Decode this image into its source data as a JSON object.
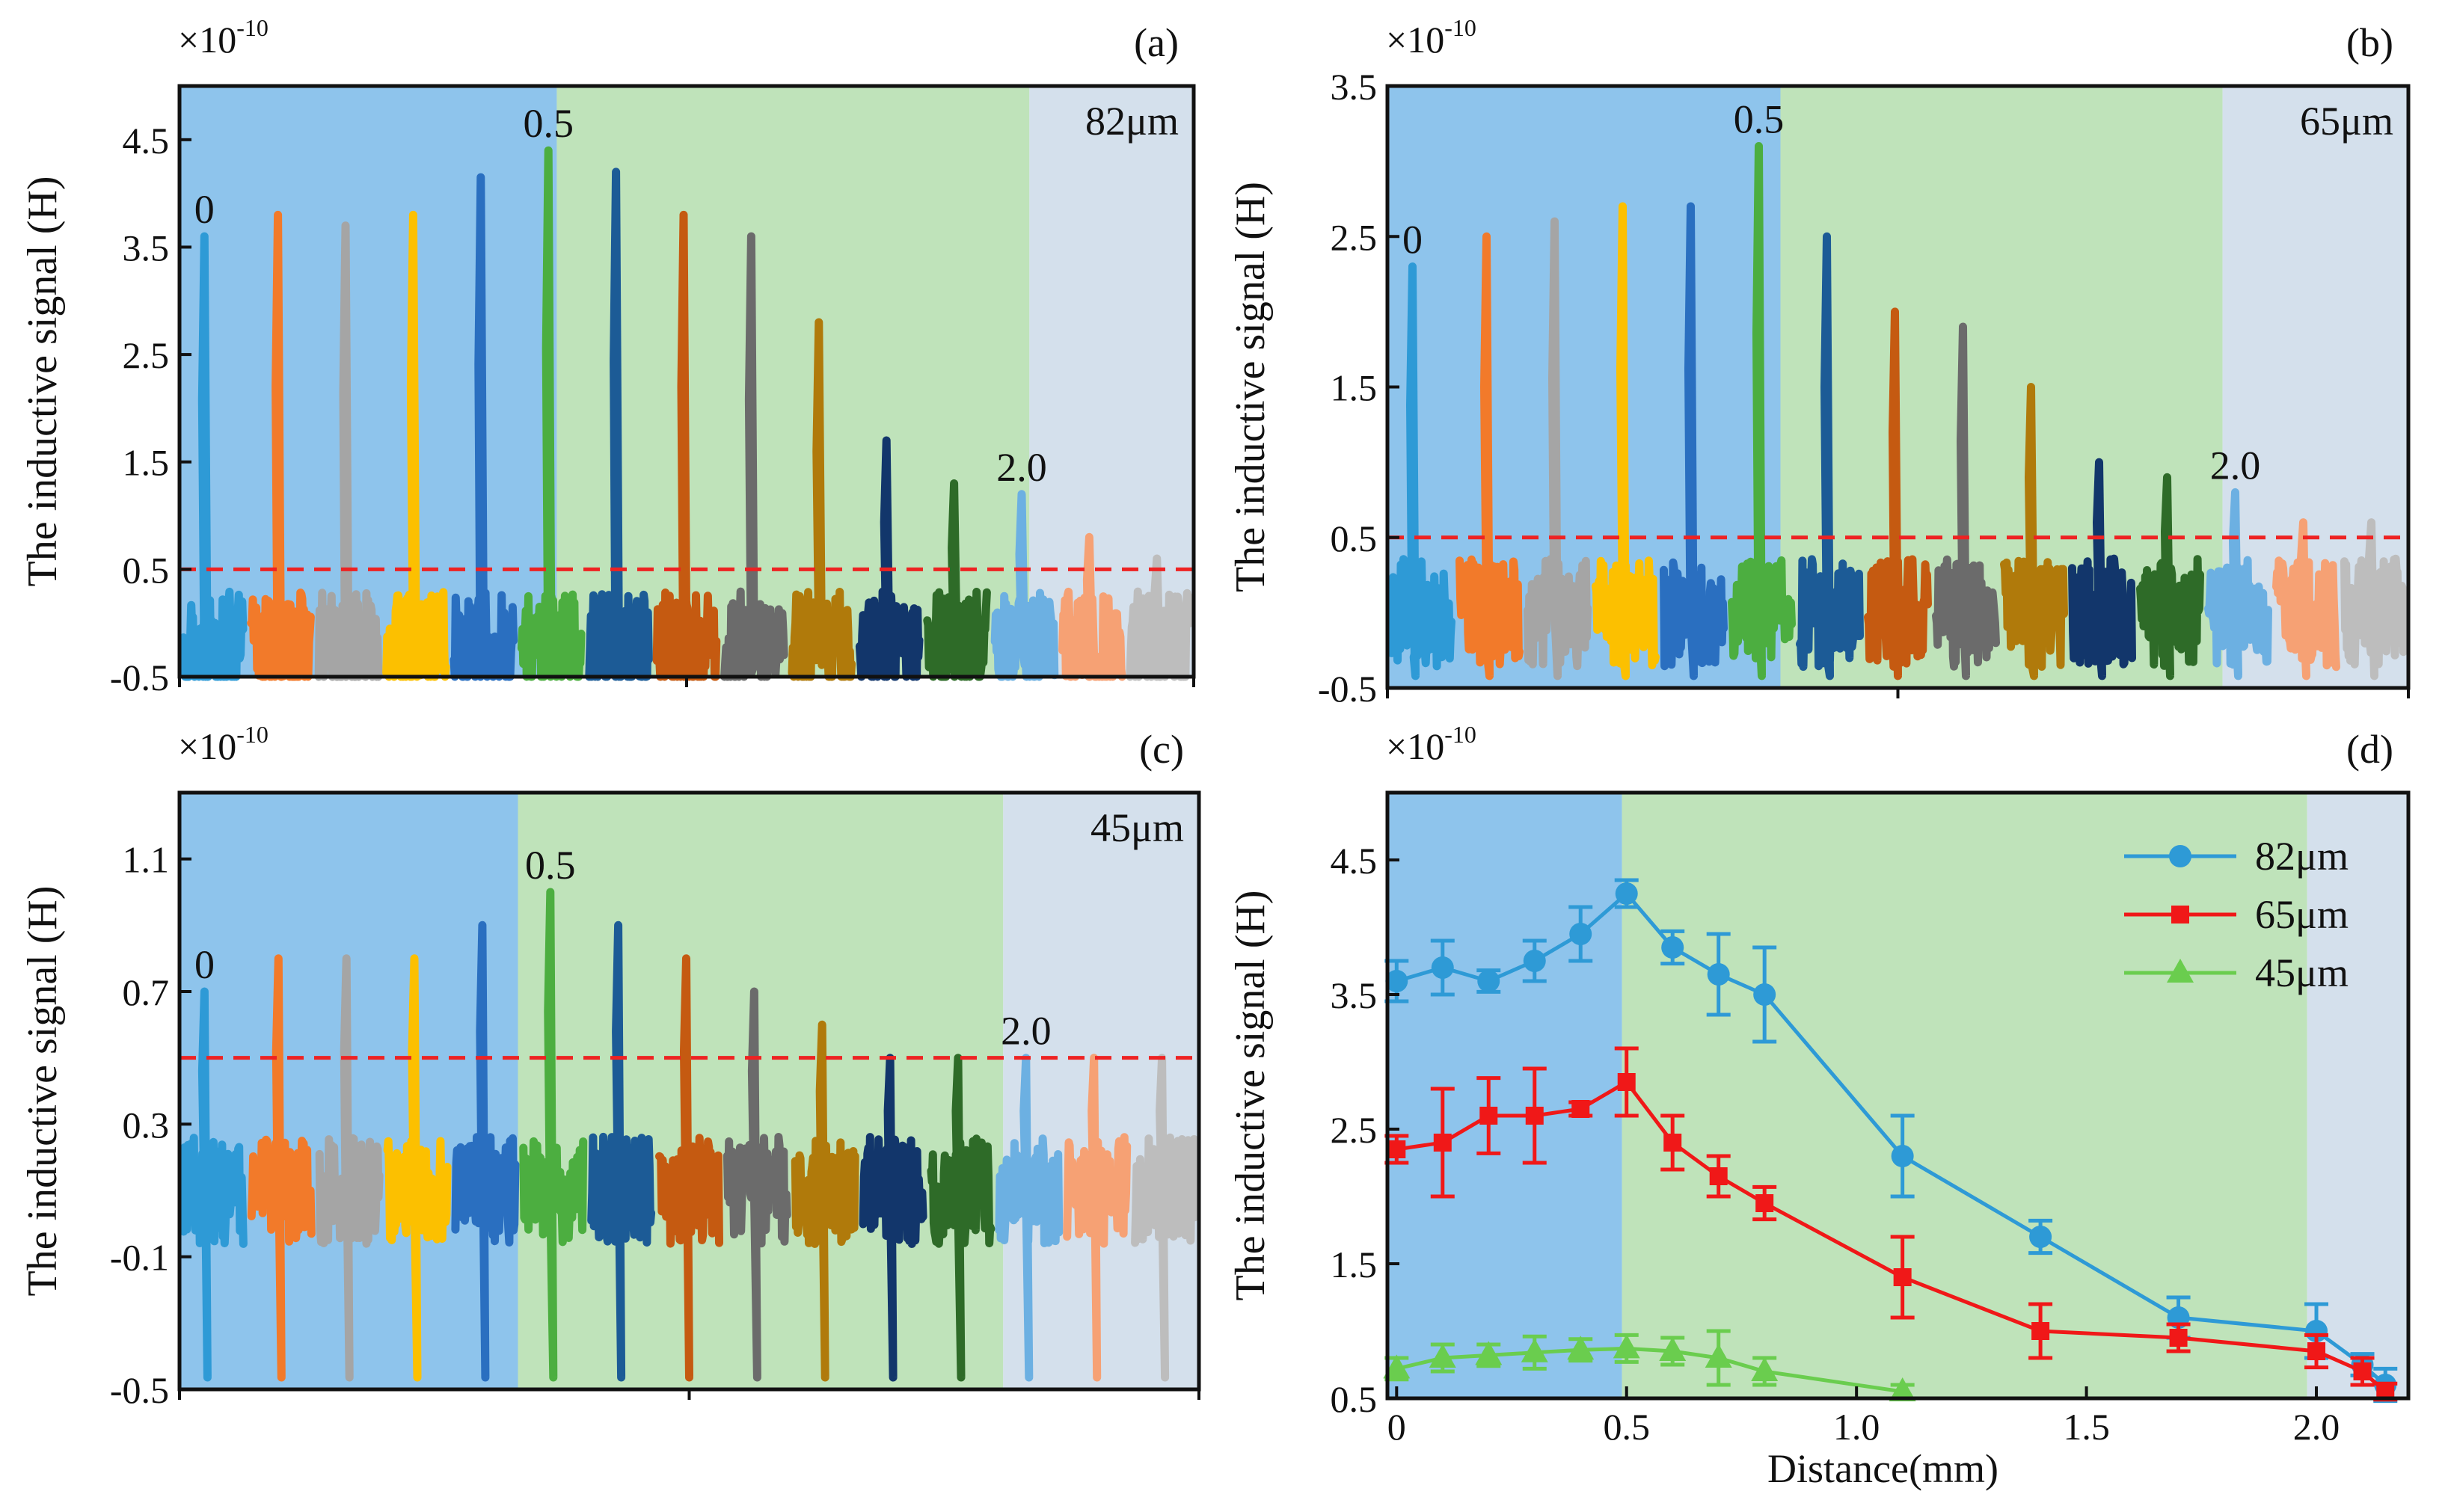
{
  "figure": {
    "panels": [
      {
        "id": "a",
        "label": "(a)",
        "multiplier": "×10",
        "exponent": "-10",
        "ylabel": "The inductive signal (H)",
        "size_label": "82μm",
        "yticks": [
          "-0.5",
          "0.5",
          "1.5",
          "2.5",
          "3.5",
          "4.5"
        ],
        "annotations": [
          "0",
          "0.5",
          "2.0"
        ]
      },
      {
        "id": "b",
        "label": "(b)",
        "multiplier": "×10",
        "exponent": "-10",
        "ylabel": "The inductive signal (H)",
        "size_label": "65μm",
        "yticks": [
          "-0.5",
          "0.5",
          "1.5",
          "2.5",
          "3.5"
        ],
        "annotations": [
          "0",
          "0.5",
          "2.0"
        ]
      },
      {
        "id": "c",
        "label": "(c)",
        "multiplier": "×10",
        "exponent": "-10",
        "ylabel": "The inductive signal (H)",
        "size_label": "45μm",
        "yticks": [
          "-0.5",
          "-0.1",
          "0.3",
          "0.7",
          "1.1"
        ],
        "annotations": [
          "0",
          "0.5",
          "2.0"
        ]
      },
      {
        "id": "d",
        "label": "(d)",
        "multiplier": "×10",
        "exponent": "-10",
        "ylabel": "The inductive signal (H)",
        "xlabel": "Distance(mm)",
        "yticks": [
          "0.5",
          "1.5",
          "2.5",
          "3.5",
          "4.5"
        ],
        "xticks": [
          "0",
          "0.5",
          "1.0",
          "1.5",
          "2.0"
        ]
      }
    ]
  },
  "chart_data": [
    {
      "type": "line",
      "panel": "a",
      "title": "(a) 82μm",
      "ylabel": "The inductive signal (H)",
      "ylim": [
        -0.5,
        5.0
      ],
      "threshold": 0.5,
      "noise_baseline": -0.2,
      "peaks": [
        {
          "distance": "0",
          "value": 3.6,
          "color": "#2e9ad6"
        },
        {
          "distance": "0.1",
          "value": 3.8,
          "color": "#f27a2a"
        },
        {
          "distance": "0.2",
          "value": 3.7,
          "color": "#a5a5a5"
        },
        {
          "distance": "0.3",
          "value": 3.8,
          "color": "#fcc000"
        },
        {
          "distance": "0.4",
          "value": 4.15,
          "color": "#2a6fc0"
        },
        {
          "distance": "0.5",
          "value": 4.4,
          "color": "#4cae40"
        },
        {
          "distance": "0.6",
          "value": 4.2,
          "color": "#1c5b96"
        },
        {
          "distance": "0.7",
          "value": 3.8,
          "color": "#c55a11"
        },
        {
          "distance": "0.8",
          "value": 3.6,
          "color": "#6b6b6b"
        },
        {
          "distance": "1.1",
          "value": 2.8,
          "color": "#b07a0b"
        },
        {
          "distance": "1.4",
          "value": 1.7,
          "color": "#12366b"
        },
        {
          "distance": "1.7",
          "value": 1.3,
          "color": "#2e6b28"
        },
        {
          "distance": "2.0",
          "value": 1.2,
          "color": "#6cb0e2"
        },
        {
          "distance": "2.1",
          "value": 0.8,
          "color": "#f6a174"
        },
        {
          "distance": "2.15",
          "value": 0.6,
          "color": "#bdbdbd"
        }
      ]
    },
    {
      "type": "line",
      "panel": "b",
      "title": "(b) 65μm",
      "ylabel": "The inductive signal (H)",
      "ylim": [
        -0.5,
        3.5
      ],
      "threshold": 0.5,
      "noise_baseline": 0.0,
      "peaks": [
        {
          "distance": "0",
          "value": 2.3,
          "color": "#2e9ad6"
        },
        {
          "distance": "0.1",
          "value": 2.5,
          "color": "#f27a2a"
        },
        {
          "distance": "0.2",
          "value": 2.6,
          "color": "#a5a5a5"
        },
        {
          "distance": "0.3",
          "value": 2.7,
          "color": "#fcc000"
        },
        {
          "distance": "0.4",
          "value": 2.7,
          "color": "#2a6fc0"
        },
        {
          "distance": "0.5",
          "value": 3.1,
          "color": "#4cae40"
        },
        {
          "distance": "0.6",
          "value": 2.5,
          "color": "#1c5b96"
        },
        {
          "distance": "0.7",
          "value": 2.0,
          "color": "#c55a11"
        },
        {
          "distance": "0.8",
          "value": 1.9,
          "color": "#6b6b6b"
        },
        {
          "distance": "1.1",
          "value": 1.5,
          "color": "#b07a0b"
        },
        {
          "distance": "1.4",
          "value": 1.0,
          "color": "#12366b"
        },
        {
          "distance": "1.7",
          "value": 0.9,
          "color": "#2e6b28"
        },
        {
          "distance": "2.0",
          "value": 0.8,
          "color": "#6cb0e2"
        },
        {
          "distance": "2.1",
          "value": 0.6,
          "color": "#f6a174"
        },
        {
          "distance": "2.15",
          "value": 0.6,
          "color": "#bdbdbd"
        }
      ]
    },
    {
      "type": "line",
      "panel": "c",
      "title": "(c) 45μm",
      "ylabel": "The inductive signal (H)",
      "ylim": [
        -0.5,
        1.3
      ],
      "threshold": 0.5,
      "noise_baseline": 0.1,
      "peaks": [
        {
          "distance": "0",
          "value": 0.7,
          "color": "#2e9ad6"
        },
        {
          "distance": "0.1",
          "value": 0.8,
          "color": "#f27a2a"
        },
        {
          "distance": "0.2",
          "value": 0.8,
          "color": "#a5a5a5"
        },
        {
          "distance": "0.3",
          "value": 0.8,
          "color": "#fcc000"
        },
        {
          "distance": "0.4",
          "value": 0.9,
          "color": "#2a6fc0"
        },
        {
          "distance": "0.5",
          "value": 1.0,
          "color": "#4cae40"
        },
        {
          "distance": "0.6",
          "value": 0.9,
          "color": "#1c5b96"
        },
        {
          "distance": "0.7",
          "value": 0.8,
          "color": "#c55a11"
        },
        {
          "distance": "0.8",
          "value": 0.7,
          "color": "#6b6b6b"
        },
        {
          "distance": "1.1",
          "value": 0.6,
          "color": "#b07a0b"
        },
        {
          "distance": "1.4",
          "value": 0.5,
          "color": "#12366b"
        },
        {
          "distance": "1.7",
          "value": 0.5,
          "color": "#2e6b28"
        },
        {
          "distance": "2.0",
          "value": 0.5,
          "color": "#6cb0e2"
        },
        {
          "distance": "2.1",
          "value": 0.5,
          "color": "#f6a174"
        },
        {
          "distance": "2.15",
          "value": 0.5,
          "color": "#bdbdbd"
        }
      ]
    },
    {
      "type": "line",
      "panel": "d",
      "title": "(d)",
      "xlabel": "Distance(mm)",
      "ylabel": "The inductive signal (H)",
      "xlim": [
        -0.02,
        2.2
      ],
      "ylim": [
        0.5,
        5.0
      ],
      "regions": [
        {
          "from": -0.02,
          "to": 0.49,
          "color": "#8ec4ec"
        },
        {
          "from": 0.49,
          "to": 1.98,
          "color": "#bfe3ba"
        },
        {
          "from": 1.98,
          "to": 2.2,
          "color": "#d4e0ec"
        }
      ],
      "series": [
        {
          "name": "82μm",
          "color": "#2e9ad6",
          "marker": "circle",
          "x": [
            0,
            0.1,
            0.2,
            0.3,
            0.4,
            0.5,
            0.6,
            0.7,
            0.8,
            1.1,
            1.4,
            1.7,
            2.0,
            2.1,
            2.15
          ],
          "y": [
            3.6,
            3.7,
            3.6,
            3.75,
            3.95,
            4.25,
            3.85,
            3.65,
            3.5,
            2.3,
            1.7,
            1.1,
            1.0,
            0.75,
            0.6
          ],
          "err": [
            0.15,
            0.2,
            0.08,
            0.15,
            0.2,
            0.1,
            0.12,
            0.3,
            0.35,
            0.3,
            0.12,
            0.15,
            0.2,
            0.08,
            0.12
          ]
        },
        {
          "name": "65μm",
          "color": "#f01818",
          "marker": "square",
          "x": [
            0,
            0.1,
            0.2,
            0.3,
            0.4,
            0.5,
            0.6,
            0.7,
            0.8,
            1.1,
            1.4,
            1.7,
            2.0,
            2.1,
            2.15
          ],
          "y": [
            2.35,
            2.4,
            2.6,
            2.6,
            2.65,
            2.85,
            2.4,
            2.15,
            1.95,
            1.4,
            1.0,
            0.95,
            0.85,
            0.7,
            0.55
          ],
          "err": [
            0.1,
            0.4,
            0.28,
            0.35,
            0.05,
            0.25,
            0.2,
            0.15,
            0.12,
            0.3,
            0.2,
            0.1,
            0.12,
            0.1,
            0.06
          ]
        },
        {
          "name": "45μm",
          "color": "#6acd4e",
          "marker": "triangle",
          "x": [
            0,
            0.1,
            0.2,
            0.3,
            0.4,
            0.5,
            0.6,
            0.7,
            0.8,
            1.1
          ],
          "y": [
            0.72,
            0.8,
            0.82,
            0.84,
            0.86,
            0.87,
            0.85,
            0.8,
            0.7,
            0.55
          ],
          "err": [
            0.08,
            0.1,
            0.08,
            0.12,
            0.08,
            0.1,
            0.1,
            0.2,
            0.1,
            0.05
          ]
        }
      ]
    }
  ]
}
